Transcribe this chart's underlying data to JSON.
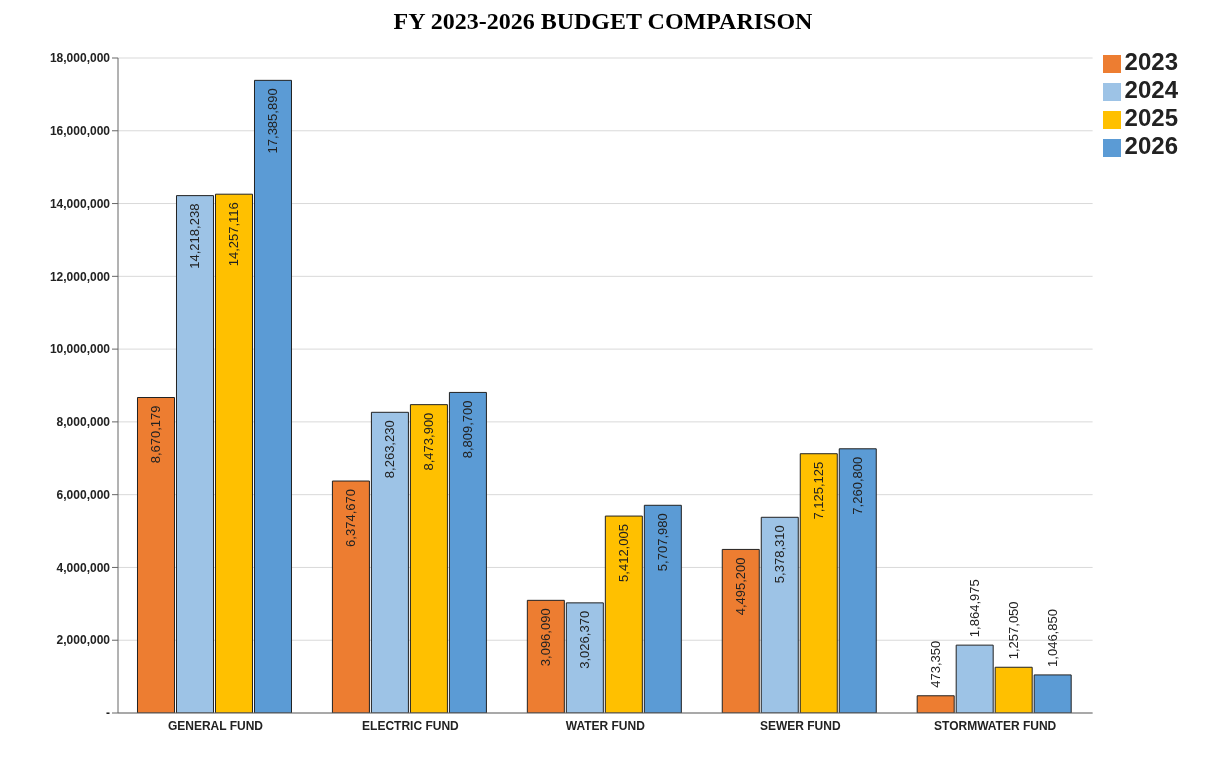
{
  "chart_data": {
    "type": "bar",
    "title": "FY 2023-2026 BUDGET COMPARISON",
    "categories": [
      "GENERAL FUND",
      "ELECTRIC FUND",
      "WATER FUND",
      "SEWER FUND",
      "STORMWATER FUND"
    ],
    "series": [
      {
        "name": "2023",
        "color": "#ed7d31",
        "values": [
          8670179,
          6374670,
          3096090,
          4495200,
          473350
        ],
        "value_labels": [
          "8,670,179",
          "6,374,670",
          "3,096,090",
          "4,495,200",
          "473,350"
        ]
      },
      {
        "name": "2024",
        "color": "#9dc3e6",
        "values": [
          14218238,
          8263230,
          3026370,
          5378310,
          1864975
        ],
        "value_labels": [
          "14,218,238",
          "8,263,230",
          "3,026,370",
          "5,378,310",
          "1,864,975"
        ]
      },
      {
        "name": "2025",
        "color": "#ffc000",
        "values": [
          14257116,
          8473900,
          5412005,
          7125125,
          1257050
        ],
        "value_labels": [
          "14,257,116",
          "8,473,900",
          "5,412,005",
          "7,125,125",
          "1,257,050"
        ]
      },
      {
        "name": "2026",
        "color": "#5b9bd5",
        "values": [
          17385890,
          8809700,
          5707980,
          7260800,
          1046850
        ],
        "value_labels": [
          "17,385,890",
          "8,809,700",
          "5,707,980",
          "7,260,800",
          "1,046,850"
        ]
      }
    ],
    "ylim": [
      0,
      18000000
    ],
    "yticks": [
      {
        "value": 0,
        "label": "-"
      },
      {
        "value": 2000000,
        "label": "2,000,000"
      },
      {
        "value": 4000000,
        "label": "4,000,000"
      },
      {
        "value": 6000000,
        "label": "6,000,000"
      },
      {
        "value": 8000000,
        "label": "8,000,000"
      },
      {
        "value": 10000000,
        "label": "10,000,000"
      },
      {
        "value": 12000000,
        "label": "12,000,000"
      },
      {
        "value": 14000000,
        "label": "14,000,000"
      },
      {
        "value": 16000000,
        "label": "16,000,000"
      },
      {
        "value": 18000000,
        "label": "18,000,000"
      }
    ],
    "grid": "y",
    "legend": "top right"
  }
}
